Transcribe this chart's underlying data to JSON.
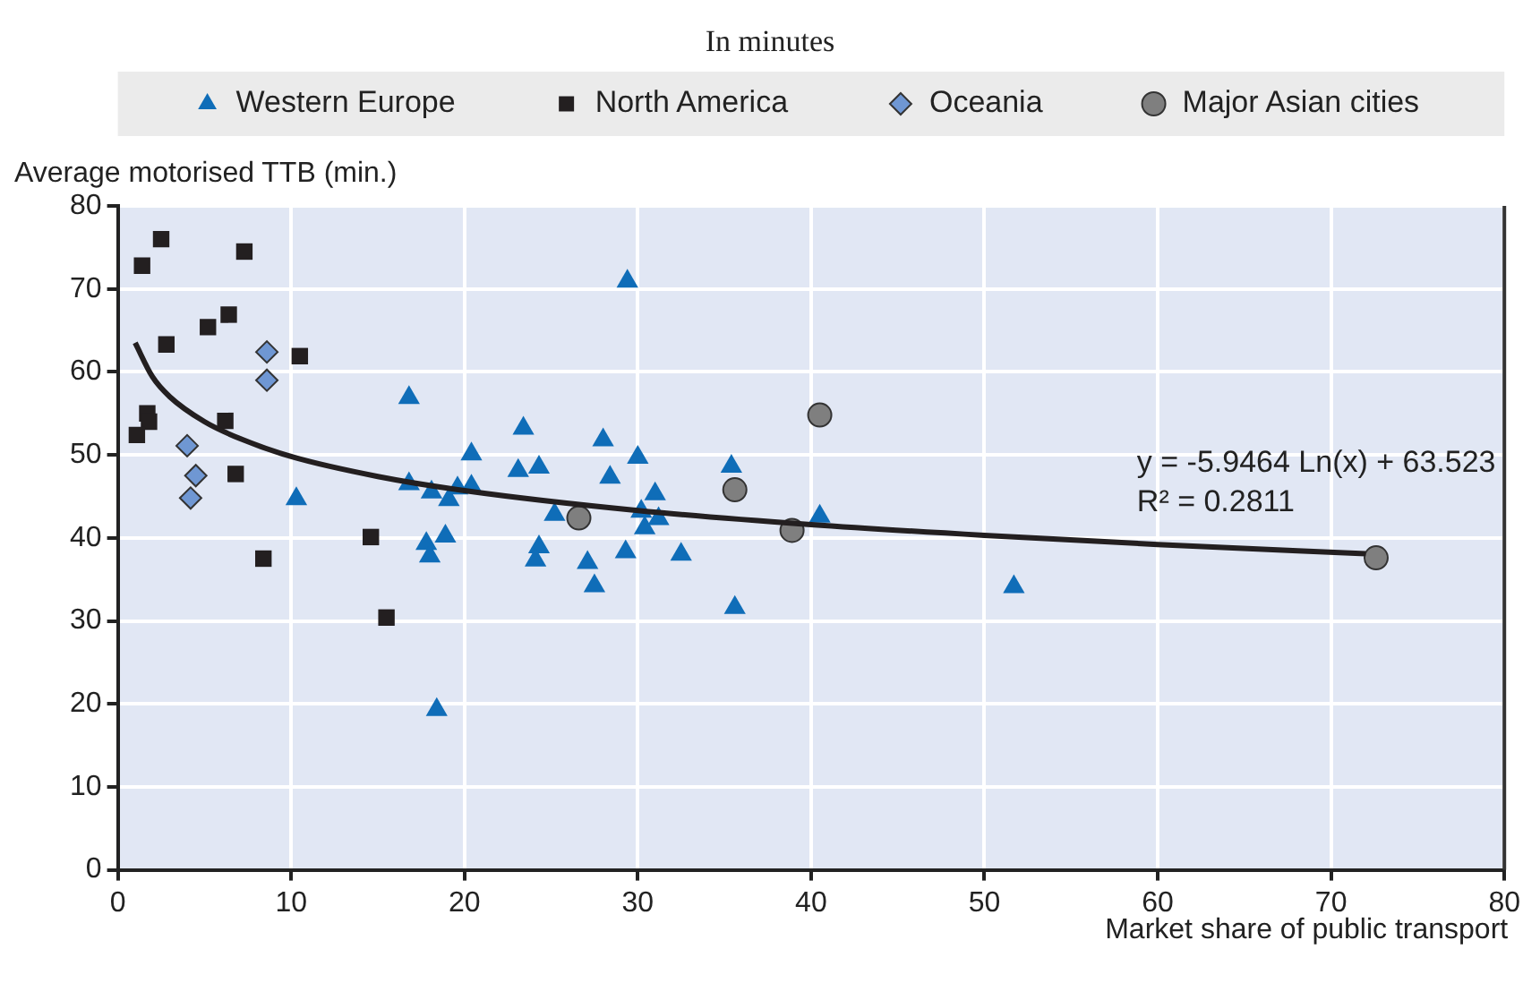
{
  "chart_data": {
    "type": "scatter",
    "title": "In minutes",
    "xlabel": "Market share of public transport",
    "ylabel": "Average motorised TTB (min.)",
    "xlim": [
      0,
      80
    ],
    "xticks": [
      0,
      10,
      20,
      30,
      40,
      50,
      60,
      70,
      80
    ],
    "ylim": [
      0,
      80
    ],
    "yticks": [
      0,
      10,
      20,
      30,
      40,
      50,
      60,
      70,
      80
    ],
    "grid": true,
    "legend": "top",
    "annotations": [
      "y = -5.9464 Ln(x) + 63.523",
      "R² = 0.2811"
    ],
    "series": [
      {
        "name": "Western Europe",
        "color": "#0f6db8",
        "marker": "triangle",
        "x": [
          16.8,
          10.3,
          16.8,
          18.1,
          19.1,
          19.6,
          17.8,
          18.9,
          18.0,
          29.4,
          23.4,
          28.0,
          20.4,
          30.0,
          23.1,
          24.3,
          28.4,
          35.4,
          20.4,
          25.2,
          31.0,
          30.2,
          31.2,
          30.4,
          24.3,
          24.1,
          29.3,
          32.5,
          27.1,
          27.5,
          18.4,
          40.5,
          35.6,
          51.7
        ],
        "values": [
          56.9,
          44.7,
          46.5,
          45.5,
          44.6,
          46.0,
          39.3,
          40.2,
          37.8,
          70.9,
          53.2,
          51.8,
          50.1,
          49.7,
          48.1,
          48.5,
          47.3,
          48.6,
          46.2,
          42.8,
          45.3,
          43.2,
          42.3,
          41.2,
          38.9,
          37.3,
          38.3,
          38.0,
          37.0,
          34.2,
          19.3,
          42.6,
          31.6,
          34.1
        ]
      },
      {
        "name": "North America",
        "color": "#231f20",
        "marker": "square",
        "x": [
          2.5,
          1.4,
          7.3,
          6.4,
          5.2,
          2.8,
          10.5,
          1.7,
          1.8,
          1.1,
          6.2,
          6.8,
          8.4,
          14.6,
          15.5
        ],
        "values": [
          76.0,
          72.8,
          74.5,
          66.9,
          65.4,
          63.3,
          61.9,
          55.0,
          54.0,
          52.4,
          54.1,
          47.7,
          37.5,
          40.1,
          30.4
        ]
      },
      {
        "name": "Oceania",
        "color": "#6f97d3",
        "marker": "diamond",
        "x": [
          8.6,
          8.6,
          4.0,
          4.5,
          4.2
        ],
        "values": [
          62.4,
          59.0,
          51.1,
          47.5,
          44.8
        ]
      },
      {
        "name": "Major Asian cities",
        "color": "#7f7f7f",
        "marker": "circle",
        "x": [
          26.6,
          35.6,
          38.9,
          40.5,
          72.6
        ],
        "values": [
          42.4,
          45.8,
          40.9,
          54.8,
          37.6
        ]
      },
      {
        "type": "line",
        "color": "#231f20",
        "marker": "none",
        "line_style": "solid",
        "x": [
          1,
          2,
          3,
          5,
          7,
          10,
          15,
          20,
          30,
          40,
          50,
          60,
          72
        ],
        "values": [
          63.5,
          59.4,
          57.0,
          54.0,
          52.0,
          49.8,
          47.4,
          45.7,
          43.3,
          41.6,
          40.3,
          39.2,
          38.1
        ]
      }
    ]
  }
}
